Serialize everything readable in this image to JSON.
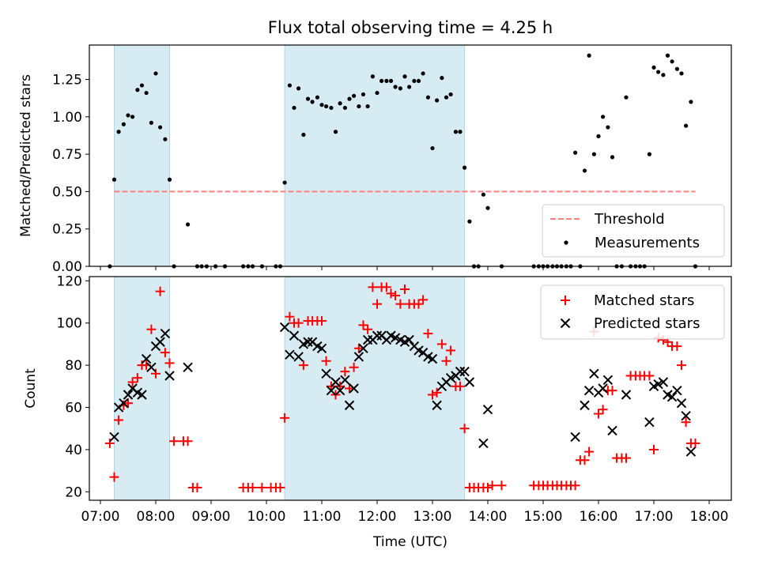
{
  "chart_data": [
    {
      "type": "scatter",
      "title": "Flux total observing time = 4.25 h",
      "xlabel": "",
      "ylabel": "Matched/Predicted stars",
      "x_unit": "hours UTC",
      "xlim": [
        6.8,
        18.4
      ],
      "ylim": [
        0,
        1.48
      ],
      "grid": false,
      "legend_position": "lower-right",
      "xticks": [
        7,
        8,
        9,
        10,
        11,
        12,
        13,
        14,
        15,
        16,
        17,
        18
      ],
      "yticks": [
        0.0,
        0.25,
        0.5,
        0.75,
        1.0,
        1.25
      ],
      "ytick_labels": [
        "0.00",
        "0.25",
        "0.50",
        "0.75",
        "1.00",
        "1.25"
      ],
      "shaded_intervals": [
        [
          7.25,
          8.25
        ],
        [
          10.33,
          13.58
        ]
      ],
      "threshold": {
        "name": "Threshold",
        "value": 0.5,
        "x_range": [
          7.25,
          17.75
        ],
        "color": "#ff7f7f",
        "style": "dashed"
      },
      "series": [
        {
          "name": "Measurements",
          "marker": "dot",
          "color": "#000000",
          "x": [
            7.17,
            7.25,
            7.33,
            7.42,
            7.5,
            7.58,
            7.67,
            7.75,
            7.83,
            7.92,
            8.0,
            8.08,
            8.17,
            8.25,
            8.33,
            8.58,
            8.75,
            8.83,
            8.92,
            9.08,
            9.25,
            9.58,
            9.67,
            9.75,
            9.92,
            10.17,
            10.25,
            10.33,
            10.42,
            10.5,
            10.58,
            10.67,
            10.75,
            10.83,
            10.92,
            11.0,
            11.08,
            11.17,
            11.25,
            11.33,
            11.42,
            11.5,
            11.58,
            11.67,
            11.75,
            11.83,
            11.92,
            12.0,
            12.08,
            12.17,
            12.25,
            12.33,
            12.42,
            12.5,
            12.58,
            12.67,
            12.75,
            12.83,
            12.92,
            13.0,
            13.08,
            13.17,
            13.25,
            13.33,
            13.42,
            13.5,
            13.58,
            13.67,
            13.75,
            13.83,
            13.92,
            14.0,
            14.25,
            14.83,
            14.92,
            15.0,
            15.08,
            15.17,
            15.25,
            15.33,
            15.42,
            15.5,
            15.58,
            15.67,
            15.75,
            15.83,
            15.92,
            16.0,
            16.08,
            16.17,
            16.25,
            16.33,
            16.42,
            16.5,
            16.58,
            16.67,
            16.75,
            16.83,
            16.92,
            17.0,
            17.08,
            17.17,
            17.25,
            17.33,
            17.42,
            17.5,
            17.58,
            17.67,
            17.75
          ],
          "y": [
            0.0,
            0.58,
            0.9,
            0.95,
            1.01,
            1.0,
            1.18,
            1.21,
            1.16,
            0.96,
            1.29,
            0.93,
            0.85,
            0.58,
            0.0,
            0.28,
            0.0,
            0.0,
            0.0,
            0.0,
            0.0,
            0.0,
            0.0,
            0.0,
            0.0,
            0.0,
            0.0,
            0.56,
            1.21,
            1.06,
            1.19,
            0.88,
            1.12,
            1.1,
            1.13,
            1.08,
            1.07,
            1.06,
            0.9,
            1.09,
            1.06,
            1.12,
            1.14,
            1.07,
            1.15,
            1.07,
            1.27,
            1.16,
            1.24,
            1.24,
            1.24,
            1.2,
            1.19,
            1.27,
            1.2,
            1.24,
            1.24,
            1.29,
            1.13,
            0.79,
            1.11,
            1.26,
            1.13,
            1.15,
            0.9,
            0.9,
            0.66,
            0.3,
            0.0,
            0.0,
            0.48,
            0.39,
            0.0,
            0.0,
            0.0,
            0.0,
            0.0,
            0.0,
            0.0,
            0.0,
            0.0,
            0.0,
            0.76,
            0.0,
            0.64,
            1.41,
            0.75,
            0.87,
            1.0,
            0.93,
            0.73,
            0.0,
            0.0,
            1.13,
            0.0,
            0.0,
            0.0,
            0.0,
            0.75,
            1.33,
            1.3,
            1.28,
            1.41,
            1.37,
            1.32,
            1.29,
            0.94,
            1.1,
            0.0
          ]
        }
      ]
    },
    {
      "type": "scatter",
      "title": "",
      "xlabel": "Time (UTC)",
      "ylabel": "Count",
      "x_unit": "hours UTC",
      "xlim": [
        6.8,
        18.4
      ],
      "ylim": [
        16,
        122
      ],
      "grid": false,
      "legend_position": "top-right",
      "xticks": [
        7,
        8,
        9,
        10,
        11,
        12,
        13,
        14,
        15,
        16,
        17,
        18
      ],
      "xtick_labels": [
        "07:00",
        "08:00",
        "09:00",
        "10:00",
        "11:00",
        "12:00",
        "13:00",
        "14:00",
        "15:00",
        "16:00",
        "17:00",
        "18:00"
      ],
      "yticks": [
        20,
        40,
        60,
        80,
        100,
        120
      ],
      "ytick_labels": [
        "20",
        "40",
        "60",
        "80",
        "100",
        "120"
      ],
      "shaded_intervals": [
        [
          7.25,
          8.25
        ],
        [
          10.33,
          13.58
        ]
      ],
      "series": [
        {
          "name": "Matched stars",
          "marker": "plus",
          "color": "#ff0000",
          "x": [
            7.17,
            7.25,
            7.33,
            7.42,
            7.5,
            7.58,
            7.67,
            7.75,
            7.83,
            7.92,
            8.0,
            8.08,
            8.17,
            8.25,
            8.33,
            8.5,
            8.58,
            8.67,
            8.75,
            9.58,
            9.67,
            9.75,
            9.92,
            10.08,
            10.17,
            10.25,
            10.33,
            10.42,
            10.5,
            10.58,
            10.67,
            10.75,
            10.83,
            10.92,
            11.0,
            11.08,
            11.17,
            11.25,
            11.33,
            11.42,
            11.5,
            11.58,
            11.67,
            11.75,
            11.83,
            11.92,
            12.0,
            12.08,
            12.17,
            12.25,
            12.33,
            12.42,
            12.5,
            12.58,
            12.67,
            12.75,
            12.83,
            12.92,
            13.0,
            13.08,
            13.17,
            13.25,
            13.33,
            13.42,
            13.5,
            13.58,
            13.67,
            13.75,
            13.83,
            13.92,
            14.0,
            14.08,
            14.25,
            14.83,
            14.92,
            15.0,
            15.08,
            15.17,
            15.25,
            15.33,
            15.42,
            15.5,
            15.58,
            15.67,
            15.75,
            15.83,
            15.92,
            16.0,
            16.08,
            16.17,
            16.25,
            16.33,
            16.42,
            16.5,
            16.58,
            16.67,
            16.75,
            16.83,
            16.92,
            17.0,
            17.08,
            17.17,
            17.25,
            17.33,
            17.42,
            17.5,
            17.58,
            17.67,
            17.75
          ],
          "y": [
            43,
            27,
            54,
            61,
            62,
            72,
            74,
            80,
            80,
            97,
            76,
            115,
            86,
            81,
            44,
            44,
            44,
            22,
            22,
            22,
            22,
            22,
            22,
            22,
            22,
            22,
            55,
            103,
            100,
            100,
            80,
            101,
            101,
            101,
            101,
            82,
            70,
            66,
            70,
            77,
            69,
            79,
            88,
            99,
            97,
            117,
            109,
            117,
            117,
            114,
            113,
            109,
            116,
            109,
            109,
            109,
            111,
            95,
            66,
            67,
            90,
            82,
            87,
            70,
            70,
            50,
            22,
            22,
            22,
            22,
            22,
            23,
            23,
            23,
            23,
            23,
            23,
            23,
            23,
            23,
            23,
            23,
            23,
            35,
            35,
            39,
            96,
            57,
            59,
            68,
            68,
            36,
            36,
            36,
            75,
            75,
            75,
            75,
            75,
            40,
            93,
            92,
            91,
            89,
            89,
            80,
            53,
            43,
            43
          ]
        },
        {
          "name": "Predicted stars",
          "marker": "x",
          "color": "#000000",
          "x": [
            7.25,
            7.33,
            7.42,
            7.5,
            7.58,
            7.67,
            7.75,
            7.83,
            7.92,
            8.0,
            8.08,
            8.17,
            8.25,
            8.58,
            10.33,
            10.42,
            10.5,
            10.58,
            10.67,
            10.75,
            10.83,
            10.92,
            11.0,
            11.08,
            11.17,
            11.25,
            11.33,
            11.42,
            11.5,
            11.58,
            11.67,
            11.75,
            11.83,
            11.92,
            12.0,
            12.08,
            12.17,
            12.25,
            12.33,
            12.42,
            12.5,
            12.58,
            12.67,
            12.75,
            12.83,
            12.92,
            13.0,
            13.08,
            13.17,
            13.25,
            13.33,
            13.42,
            13.5,
            13.58,
            13.67,
            13.92,
            14.0,
            15.58,
            15.75,
            15.83,
            15.92,
            16.0,
            16.08,
            16.17,
            16.25,
            16.5,
            16.92,
            17.0,
            17.08,
            17.17,
            17.25,
            17.33,
            17.42,
            17.5,
            17.58,
            17.67
          ],
          "y": [
            46,
            60,
            62,
            66,
            69,
            67,
            66,
            83,
            79,
            89,
            91,
            95,
            75,
            79,
            98,
            85,
            94,
            84,
            90,
            91,
            91,
            89,
            88,
            76,
            68,
            72,
            68,
            73,
            61,
            69,
            84,
            88,
            92,
            92,
            94,
            94,
            92,
            94,
            93,
            92,
            91,
            92,
            89,
            87,
            86,
            84,
            83,
            61,
            70,
            72,
            74,
            75,
            77,
            77,
            72,
            43,
            59,
            46,
            61,
            68,
            76,
            67,
            69,
            73,
            49,
            66,
            53,
            70,
            71,
            72,
            66,
            65,
            68,
            62,
            56,
            39
          ]
        }
      ]
    }
  ]
}
